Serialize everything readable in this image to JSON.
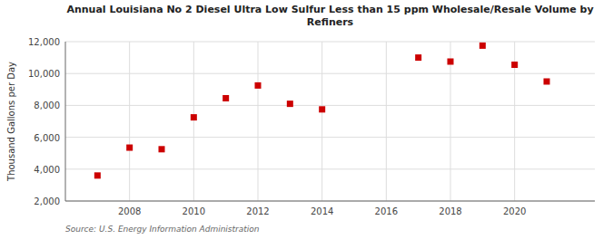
{
  "chart_data": {
    "type": "scatter",
    "title": "Annual Louisiana No 2 Diesel Ultra Low Sulfur Less than 15 ppm Wholesale/Resale Volume by\nRefiners",
    "y_label": "Thousand Gallons per Day",
    "annotations": [
      "Source: U.S. Energy Information Administration"
    ],
    "x": [
      2007,
      2008,
      2009,
      2010,
      2011,
      2012,
      2013,
      2014,
      2017,
      2018,
      2019,
      2020,
      2021
    ],
    "values": [
      3600,
      5350,
      5250,
      7250,
      8450,
      9250,
      8100,
      7750,
      11000,
      10750,
      11750,
      10550,
      9500
    ],
    "xlim": [
      2006.0,
      2022.5
    ],
    "xticks": [
      2008,
      2010,
      2012,
      2014,
      2016,
      2018,
      2020
    ],
    "ylim": [
      2000,
      12000
    ],
    "yticks": [
      {
        "value": 2000,
        "label": "2,000"
      },
      {
        "value": 4000,
        "label": "4,000"
      },
      {
        "value": 6000,
        "label": "6,000"
      },
      {
        "value": 8000,
        "label": "8,000"
      },
      {
        "value": 10000,
        "label": "10,000"
      },
      {
        "value": 12000,
        "label": "12,000"
      }
    ],
    "color": "#cc0000",
    "marker": "square",
    "grid": true
  }
}
